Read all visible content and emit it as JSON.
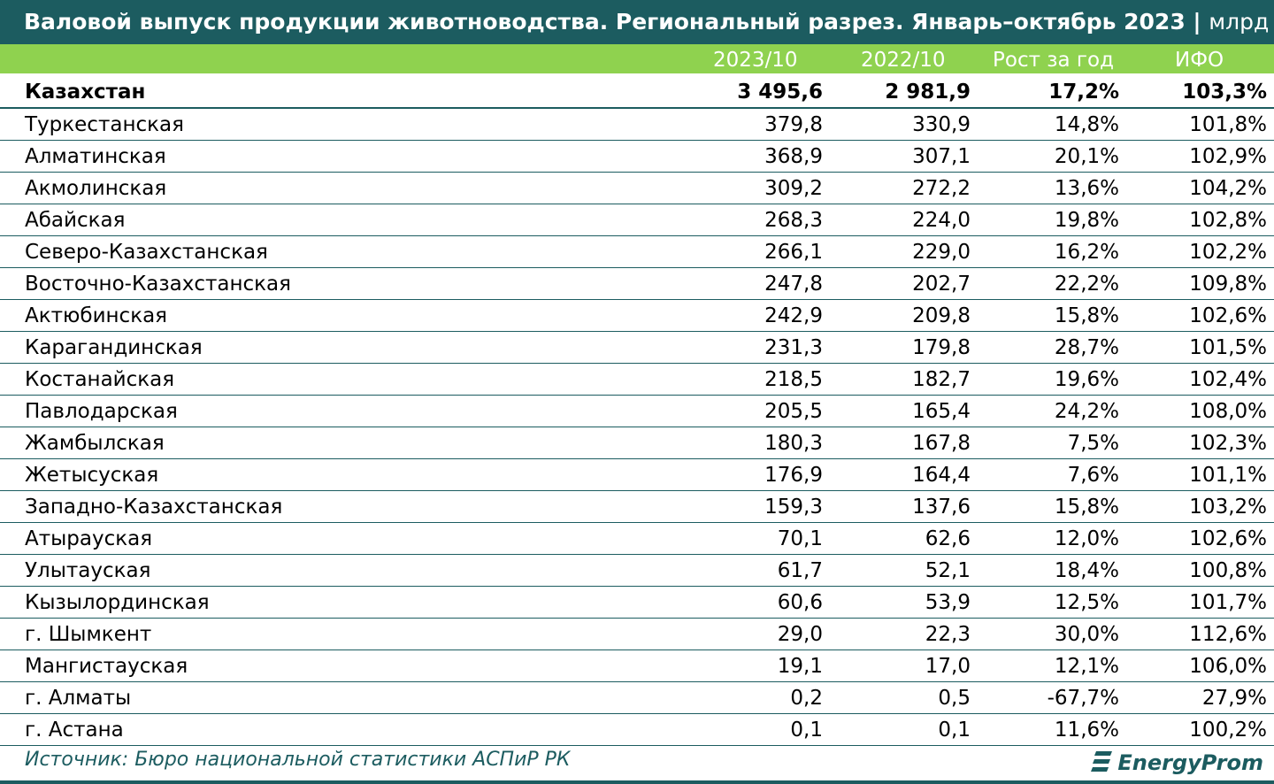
{
  "title": {
    "main": "Валовой выпуск продукции животноводства. Региональный разрез. Январь–октябрь 2023",
    "separator": " | ",
    "unit": "млрд тг"
  },
  "chart_data": {
    "type": "table",
    "columns": [
      "2023/10",
      "2022/10",
      "Рост за год",
      "ИФО"
    ],
    "rows": [
      {
        "name": "Казахстан",
        "v2023": "3 495,6",
        "v2022": "2 981,9",
        "growth": "17,2%",
        "ifo": "103,3%",
        "total": true
      },
      {
        "name": "Туркестанская",
        "v2023": "379,8",
        "v2022": "330,9",
        "growth": "14,8%",
        "ifo": "101,8%"
      },
      {
        "name": "Алматинская",
        "v2023": "368,9",
        "v2022": "307,1",
        "growth": "20,1%",
        "ifo": "102,9%"
      },
      {
        "name": "Акмолинская",
        "v2023": "309,2",
        "v2022": "272,2",
        "growth": "13,6%",
        "ifo": "104,2%"
      },
      {
        "name": "Абайская",
        "v2023": "268,3",
        "v2022": "224,0",
        "growth": "19,8%",
        "ifo": "102,8%"
      },
      {
        "name": "Северо-Казахстанская",
        "v2023": "266,1",
        "v2022": "229,0",
        "growth": "16,2%",
        "ifo": "102,2%"
      },
      {
        "name": "Восточно-Казахстанская",
        "v2023": "247,8",
        "v2022": "202,7",
        "growth": "22,2%",
        "ifo": "109,8%"
      },
      {
        "name": "Актюбинская",
        "v2023": "242,9",
        "v2022": "209,8",
        "growth": "15,8%",
        "ifo": "102,6%"
      },
      {
        "name": "Карагандинская",
        "v2023": "231,3",
        "v2022": "179,8",
        "growth": "28,7%",
        "ifo": "101,5%"
      },
      {
        "name": "Костанайская",
        "v2023": "218,5",
        "v2022": "182,7",
        "growth": "19,6%",
        "ifo": "102,4%"
      },
      {
        "name": "Павлодарская",
        "v2023": "205,5",
        "v2022": "165,4",
        "growth": "24,2%",
        "ifo": "108,0%"
      },
      {
        "name": "Жамбылская",
        "v2023": "180,3",
        "v2022": "167,8",
        "growth": "7,5%",
        "ifo": "102,3%"
      },
      {
        "name": "Жетысуская",
        "v2023": "176,9",
        "v2022": "164,4",
        "growth": "7,6%",
        "ifo": "101,1%"
      },
      {
        "name": "Западно-Казахстанская",
        "v2023": "159,3",
        "v2022": "137,6",
        "growth": "15,8%",
        "ifo": "103,2%"
      },
      {
        "name": "Атырауская",
        "v2023": "70,1",
        "v2022": "62,6",
        "growth": "12,0%",
        "ifo": "102,6%"
      },
      {
        "name": "Улытауская",
        "v2023": "61,7",
        "v2022": "52,1",
        "growth": "18,4%",
        "ifo": "100,8%"
      },
      {
        "name": "Кызылординская",
        "v2023": "60,6",
        "v2022": "53,9",
        "growth": "12,5%",
        "ifo": "101,7%"
      },
      {
        "name": "г. Шымкент",
        "v2023": "29,0",
        "v2022": "22,3",
        "growth": "30,0%",
        "ifo": "112,6%"
      },
      {
        "name": "Мангистауская",
        "v2023": "19,1",
        "v2022": "17,0",
        "growth": "12,1%",
        "ifo": "106,0%"
      },
      {
        "name": "г. Алматы",
        "v2023": "0,2",
        "v2022": "0,5",
        "growth": "-67,7%",
        "ifo": "27,9%"
      },
      {
        "name": "г. Астана",
        "v2023": "0,1",
        "v2022": "0,1",
        "growth": "11,6%",
        "ifo": "100,2%"
      }
    ]
  },
  "footer": {
    "source": "Источник: Бюро национальной статистики АСПиР РК",
    "logo_text": "EnergyProm"
  },
  "colors": {
    "title_bg": "#1c5c60",
    "header_bg": "#8fd24f",
    "rule": "#1c5c60"
  }
}
